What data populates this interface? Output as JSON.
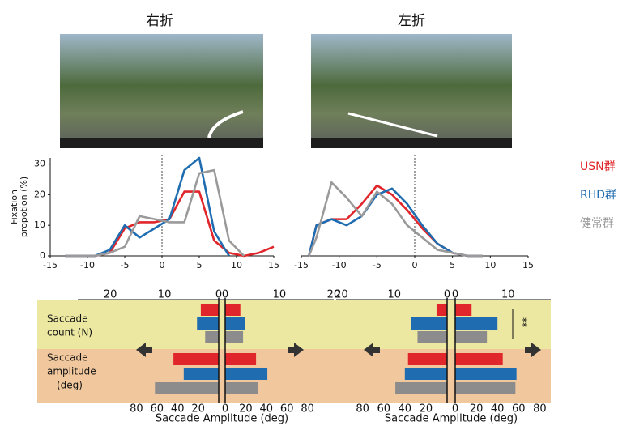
{
  "chart_data": [
    {
      "type": "line",
      "title": "右折",
      "ylabel": [
        "Fixation",
        "propotion (%)"
      ],
      "x": [
        -13,
        -11,
        -9,
        -7,
        -5,
        -3,
        -1,
        1,
        3,
        5,
        7,
        9,
        11,
        13,
        15
      ],
      "series": [
        {
          "color": "#e0262a",
          "values": [
            0,
            0,
            0,
            1,
            9,
            11,
            11,
            12,
            21,
            21,
            5,
            1,
            0,
            1,
            3
          ]
        },
        {
          "color": "#1f6db0",
          "values": [
            0,
            0,
            0,
            2,
            10,
            6,
            9,
            12,
            28,
            32,
            8,
            0,
            null,
            null,
            null
          ]
        },
        {
          "color": "#9a9a9a",
          "values": [
            0,
            0,
            0,
            1,
            3,
            13,
            12,
            11,
            11,
            27,
            28,
            5,
            0,
            null,
            null
          ]
        }
      ],
      "xlim": [
        -15,
        15
      ],
      "xticks": [
        -15,
        -10,
        -5,
        0,
        5,
        10,
        15
      ],
      "ylim": [
        0,
        32
      ],
      "yticks": [
        0,
        10,
        20,
        30
      ]
    },
    {
      "type": "line",
      "title": "左折",
      "x": [
        -14,
        -13,
        -11,
        -9,
        -7,
        -5,
        -3,
        -1,
        1,
        3,
        5,
        7,
        9
      ],
      "series": [
        {
          "name": "USN群",
          "color": "#e0262a",
          "values": [
            0,
            10,
            12,
            12,
            17,
            23,
            20,
            15,
            9,
            4,
            1,
            0,
            0
          ]
        },
        {
          "name": "RHD群",
          "color": "#1f6db0",
          "values": [
            0,
            10,
            12,
            10,
            13,
            20,
            22,
            17,
            10,
            4,
            1,
            0,
            0
          ]
        },
        {
          "name": "健常群",
          "color": "#9a9a9a",
          "values": [
            0,
            6,
            24,
            19,
            13,
            21,
            17,
            10,
            6,
            2,
            1,
            0,
            0
          ]
        }
      ],
      "xlim": [
        -15,
        15
      ],
      "xticks": [
        -15,
        -10,
        -5,
        0,
        5,
        10,
        15
      ],
      "ylim": [
        0,
        32
      ],
      "legend": "right"
    },
    {
      "type": "mirror-bar",
      "rows": [
        {
          "label": [
            "Saccade",
            "count (N)"
          ],
          "lim": [
            0,
            26
          ],
          "ticks_left": [
            20,
            10,
            0
          ],
          "ticks_right": [
            0,
            10,
            20
          ]
        },
        {
          "label": [
            "Saccade",
            "amplitude",
            "(deg)"
          ],
          "lim": [
            0,
            137
          ],
          "ticks_left": [
            80,
            60,
            40,
            20
          ],
          "ticks_right": [
            0,
            20,
            40,
            60,
            80
          ]
        }
      ],
      "xlabel": "Saccade Amplitude (deg)",
      "series": [
        {
          "color": "#e0262a",
          "values": [
            [
              3.3,
              2.8
            ],
            [
              44,
              30
            ]
          ]
        },
        {
          "color": "#1f6db0",
          "values": [
            [
              4,
              3.6
            ],
            [
              34,
              41
            ]
          ]
        },
        {
          "color": "#8c8c8c",
          "values": [
            [
              2.5,
              3.3
            ],
            [
              62,
              32
            ]
          ]
        }
      ]
    },
    {
      "type": "mirror-bar",
      "rows": [
        {
          "lim": [
            0,
            21
          ],
          "ticks_left": [
            20,
            10,
            0
          ],
          "ticks_right": [
            0,
            10
          ]
        },
        {
          "lim": [
            0,
            105
          ],
          "ticks_left": [
            80,
            60,
            40,
            20
          ],
          "ticks_right": [
            0,
            20,
            40,
            60,
            80
          ]
        }
      ],
      "xlabel": "Saccade Amplitude (deg)",
      "annotation": "**",
      "series": [
        {
          "color": "#e0262a",
          "values": [
            [
              2,
              3.1
            ],
            [
              37,
              45
            ]
          ]
        },
        {
          "color": "#1f6db0",
          "values": [
            [
              6.9,
              8
            ],
            [
              40,
              58
            ]
          ]
        },
        {
          "color": "#8c8c8c",
          "values": [
            [
              5.6,
              6
            ],
            [
              49,
              57
            ]
          ]
        }
      ]
    }
  ]
}
